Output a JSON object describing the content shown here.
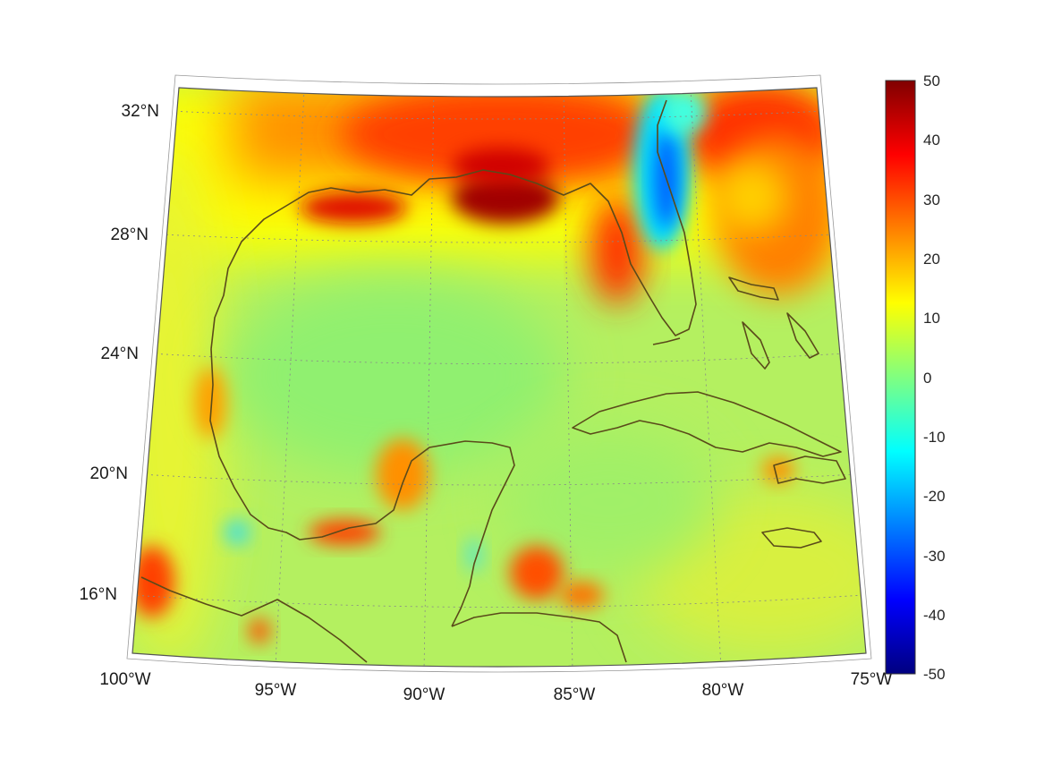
{
  "map": {
    "projection": "conic",
    "region": "Gulf of Mexico and Caribbean",
    "lat_labels": [
      "32°N",
      "28°N",
      "24°N",
      "20°N",
      "16°N"
    ],
    "lon_labels": [
      "100°W",
      "95°W",
      "90°W",
      "85°W",
      "80°W",
      "75°W"
    ],
    "lat_range": [
      14,
      33
    ],
    "lon_range": [
      -100,
      -75
    ],
    "gridlines": true,
    "coastline_color": "#5a4a1a"
  },
  "colorbar": {
    "colormap": "jet",
    "range": [
      -50,
      50
    ],
    "tick_labels": [
      "50",
      "40",
      "30",
      "20",
      "10",
      "0",
      "-10",
      "-20",
      "-30",
      "-40",
      "-50"
    ],
    "colors": [
      "#800000",
      "#ff0000",
      "#ff8000",
      "#ffff00",
      "#80ff80",
      "#00ffff",
      "#0080ff",
      "#0000ff",
      "#000080"
    ]
  }
}
